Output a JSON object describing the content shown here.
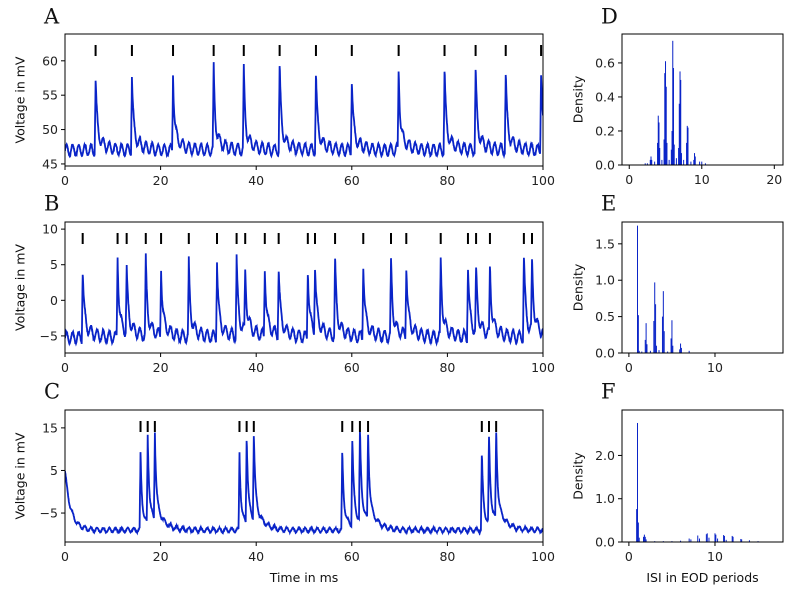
{
  "colors": {
    "trace": "#0a24c8",
    "bars": "#0a24c8",
    "spike_marks": "#000000",
    "axes": "#000000"
  },
  "chart_data": [
    {
      "panel": "A",
      "type": "line",
      "xlabel": "",
      "ylabel": "Voltage in mV",
      "xlim": [
        0,
        100
      ],
      "ylim": [
        44.7,
        63.9
      ],
      "xticks": [
        0,
        20,
        40,
        60,
        80,
        100
      ],
      "yticks": [
        45,
        50,
        55,
        60
      ],
      "baseline": 47.0,
      "oscillation_amplitude": 0.8,
      "spike_times": [
        6.4,
        14.0,
        22.6,
        31.1,
        37.4,
        44.9,
        52.5,
        60.0,
        69.8,
        79.4,
        85.9,
        92.2,
        99.6
      ],
      "spike_peaks": [
        58.3,
        58.3,
        58.8,
        59.5,
        59.0,
        60.1,
        58.8,
        58.2,
        59.8,
        59.5,
        59.5,
        58.8,
        59.9
      ],
      "spike_mark_level": 62.5
    },
    {
      "panel": "B",
      "type": "line",
      "xlabel": "",
      "ylabel": "Voltage in mV",
      "xlim": [
        0,
        100
      ],
      "ylim": [
        -7.4,
        11.0
      ],
      "xticks": [
        0,
        20,
        40,
        60,
        80,
        100
      ],
      "yticks": [
        -5,
        0,
        5,
        10
      ],
      "baseline": -5.2,
      "oscillation_amplitude": 0.8,
      "spike_times": [
        3.7,
        11.0,
        12.9,
        16.9,
        20.1,
        25.9,
        31.8,
        35.9,
        37.7,
        41.8,
        44.7,
        50.8,
        52.3,
        56.5,
        62.4,
        68.2,
        71.4,
        78.6,
        84.3,
        86.0,
        88.9,
        96.0,
        97.7
      ],
      "spike_peaks": [
        5.2,
        6.9,
        4.0,
        5.8,
        4.9,
        5.5,
        6.2,
        6.3,
        4.2,
        5.5,
        5.1,
        5.4,
        4.9,
        6.1,
        6.2,
        6.1,
        5.7,
        6.6,
        5.8,
        4.0,
        5.1,
        7.2,
        5.2
      ],
      "spike_mark_level": 8.5
    },
    {
      "panel": "C",
      "type": "line",
      "xlabel": "Time in ms",
      "ylabel": "Voltage in mV",
      "xlim": [
        0,
        100
      ],
      "ylim": [
        -11.8,
        19.2
      ],
      "xticks": [
        0,
        20,
        40,
        60,
        80,
        100
      ],
      "yticks": [
        -5,
        5,
        15
      ],
      "baseline": -9.0,
      "oscillation_amplitude": 0.5,
      "initial_value": 5.0,
      "spike_times": [
        15.8,
        17.3,
        18.8,
        36.5,
        38.0,
        39.5,
        58.0,
        60.1,
        61.7,
        63.4,
        87.2,
        88.7,
        90.2
      ],
      "spike_peaks": [
        9.5,
        12.5,
        12.5,
        9.8,
        12.8,
        13.0,
        10.5,
        13.2,
        13.5,
        13.2,
        10.0,
        12.8,
        13.5
      ],
      "spike_mark_level": 15.0
    },
    {
      "panel": "D",
      "type": "bar",
      "xlabel": "",
      "ylabel": "Density",
      "xlim": [
        -1.0,
        21.2
      ],
      "ylim": [
        0,
        0.77
      ],
      "xticks": [
        0,
        10,
        20
      ],
      "yticks": [
        "0.0",
        "0.2",
        "0.4",
        "0.6"
      ],
      "bin_width": 0.1,
      "bins": [
        2.2,
        2.5,
        2.9,
        3.0,
        3.1,
        3.5,
        3.9,
        4.0,
        4.1,
        4.2,
        4.5,
        4.8,
        4.9,
        5.0,
        5.1,
        5.2,
        5.5,
        5.8,
        5.9,
        6.0,
        6.1,
        6.2,
        6.5,
        6.8,
        6.9,
        7.0,
        7.1,
        7.2,
        7.5,
        7.9,
        8.0,
        8.1,
        8.5,
        8.9,
        9.0,
        9.1,
        9.7,
        10.0,
        10.5
      ],
      "density": [
        0.01,
        0.01,
        0.03,
        0.05,
        0.03,
        0.02,
        0.13,
        0.29,
        0.25,
        0.1,
        0.03,
        0.15,
        0.54,
        0.61,
        0.46,
        0.13,
        0.03,
        0.09,
        0.2,
        0.73,
        0.57,
        0.12,
        0.04,
        0.1,
        0.36,
        0.55,
        0.5,
        0.07,
        0.03,
        0.13,
        0.23,
        0.22,
        0.02,
        0.03,
        0.07,
        0.05,
        0.02,
        0.02,
        0.01
      ]
    },
    {
      "panel": "E",
      "type": "bar",
      "xlabel": "",
      "ylabel": "Density",
      "xlim": [
        -0.8,
        17.9
      ],
      "ylim": [
        0,
        1.8
      ],
      "xticks": [
        0,
        10
      ],
      "yticks": [
        "0.0",
        "0.5",
        "1.0",
        "1.5"
      ],
      "bin_width": 0.1,
      "bins": [
        1.0,
        1.1,
        1.2,
        1.5,
        1.9,
        2.0,
        2.1,
        2.5,
        2.9,
        3.0,
        3.1,
        3.2,
        3.5,
        3.9,
        4.0,
        4.1,
        4.5,
        4.9,
        5.0,
        5.1,
        5.9,
        6.0,
        6.1,
        7.0
      ],
      "density": [
        1.75,
        0.52,
        0.03,
        0.02,
        0.18,
        0.41,
        0.12,
        0.03,
        0.44,
        0.97,
        0.67,
        0.1,
        0.04,
        0.5,
        0.85,
        0.3,
        0.02,
        0.2,
        0.45,
        0.1,
        0.05,
        0.13,
        0.07,
        0.03
      ]
    },
    {
      "panel": "F",
      "type": "bar",
      "xlabel": "ISI in EOD periods",
      "ylabel": "Density",
      "xlim": [
        -0.8,
        17.9
      ],
      "ylim": [
        0,
        3.05
      ],
      "xticks": [
        0,
        10
      ],
      "yticks": [
        "0.0",
        "1.0",
        "2.0"
      ],
      "bin_width": 0.1,
      "bins": [
        0.9,
        1.0,
        1.1,
        1.2,
        1.7,
        1.8,
        1.9,
        2.0,
        3.0,
        4.0,
        5.0,
        6.0,
        7.0,
        7.2,
        8.0,
        8.2,
        9.0,
        9.1,
        9.3,
        10.0,
        10.1,
        10.3,
        11.0,
        11.1,
        11.3,
        12.0,
        12.1,
        13.0,
        13.1,
        14.0,
        15.0
      ],
      "density": [
        0.76,
        2.75,
        0.45,
        0.1,
        0.12,
        0.17,
        0.12,
        0.06,
        0.02,
        0.02,
        0.02,
        0.03,
        0.08,
        0.06,
        0.15,
        0.08,
        0.18,
        0.2,
        0.1,
        0.2,
        0.17,
        0.08,
        0.16,
        0.14,
        0.05,
        0.14,
        0.12,
        0.07,
        0.06,
        0.04,
        0.02
      ]
    }
  ]
}
